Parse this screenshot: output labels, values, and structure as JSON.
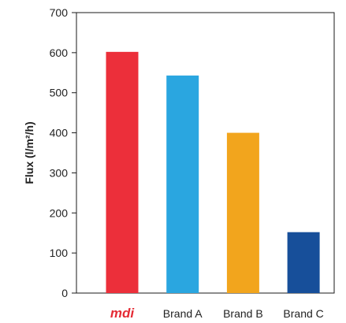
{
  "chart_data": {
    "type": "bar",
    "categories": [
      "mdi",
      "Brand A",
      "Brand B",
      "Brand C"
    ],
    "values": [
      602,
      543,
      400,
      152
    ],
    "colors": [
      "#ec2f3a",
      "#2aa6e0",
      "#f2a51d",
      "#174f9a"
    ],
    "logo_color": "#e52c36",
    "logo_category_index": 0,
    "title": "",
    "xlabel": "",
    "ylabel": "Flux (l/m²/h)",
    "ylim": [
      0,
      700
    ],
    "yticks": [
      0,
      100,
      200,
      300,
      400,
      500,
      600,
      700
    ],
    "grid": false,
    "legend": "none"
  }
}
